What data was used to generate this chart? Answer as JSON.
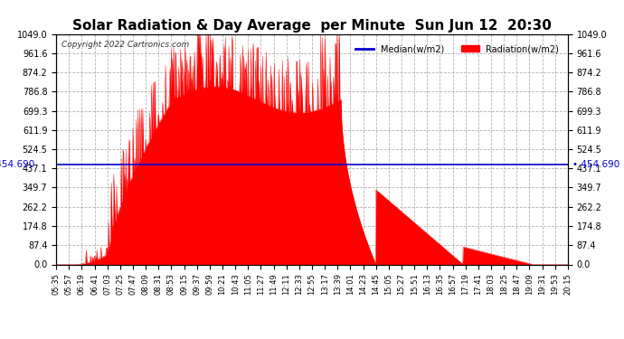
{
  "title": "Solar Radiation & Day Average  per Minute  Sun Jun 12  20:30",
  "copyright": "Copyright 2022 Cartronics.com",
  "median_value": 454.69,
  "median_label": "454.690",
  "ymax": 1049.0,
  "ymin": 0.0,
  "yticks": [
    0.0,
    87.4,
    174.8,
    262.2,
    349.7,
    437.1,
    524.5,
    611.9,
    699.3,
    786.8,
    874.2,
    961.6,
    1049.0
  ],
  "ytick_labels": [
    "0.0",
    "87.4",
    "174.8",
    "262.2",
    "349.7",
    "437.1",
    "524.5",
    "611.9",
    "699.3",
    "786.8",
    "874.2",
    "961.6",
    "1049.0"
  ],
  "background_color": "#ffffff",
  "plot_bg_color": "#ffffff",
  "grid_color": "#aaaaaa",
  "radiation_color": "#ff0000",
  "median_color": "#0000cc",
  "title_fontsize": 11,
  "legend_median_label": "Median(w/m2)",
  "legend_radiation_label": "Radiation(w/m2)",
  "xtick_labels": [
    "05:35",
    "05:57",
    "06:19",
    "06:41",
    "07:03",
    "07:25",
    "07:47",
    "08:09",
    "08:31",
    "08:53",
    "09:15",
    "09:37",
    "09:59",
    "10:21",
    "10:43",
    "11:05",
    "11:27",
    "11:49",
    "12:11",
    "12:33",
    "12:55",
    "13:17",
    "13:39",
    "14:01",
    "14:23",
    "14:45",
    "15:05",
    "15:27",
    "15:51",
    "16:13",
    "16:35",
    "16:57",
    "17:19",
    "17:41",
    "18:03",
    "18:25",
    "18:47",
    "19:09",
    "19:31",
    "19:53",
    "20:15"
  ]
}
